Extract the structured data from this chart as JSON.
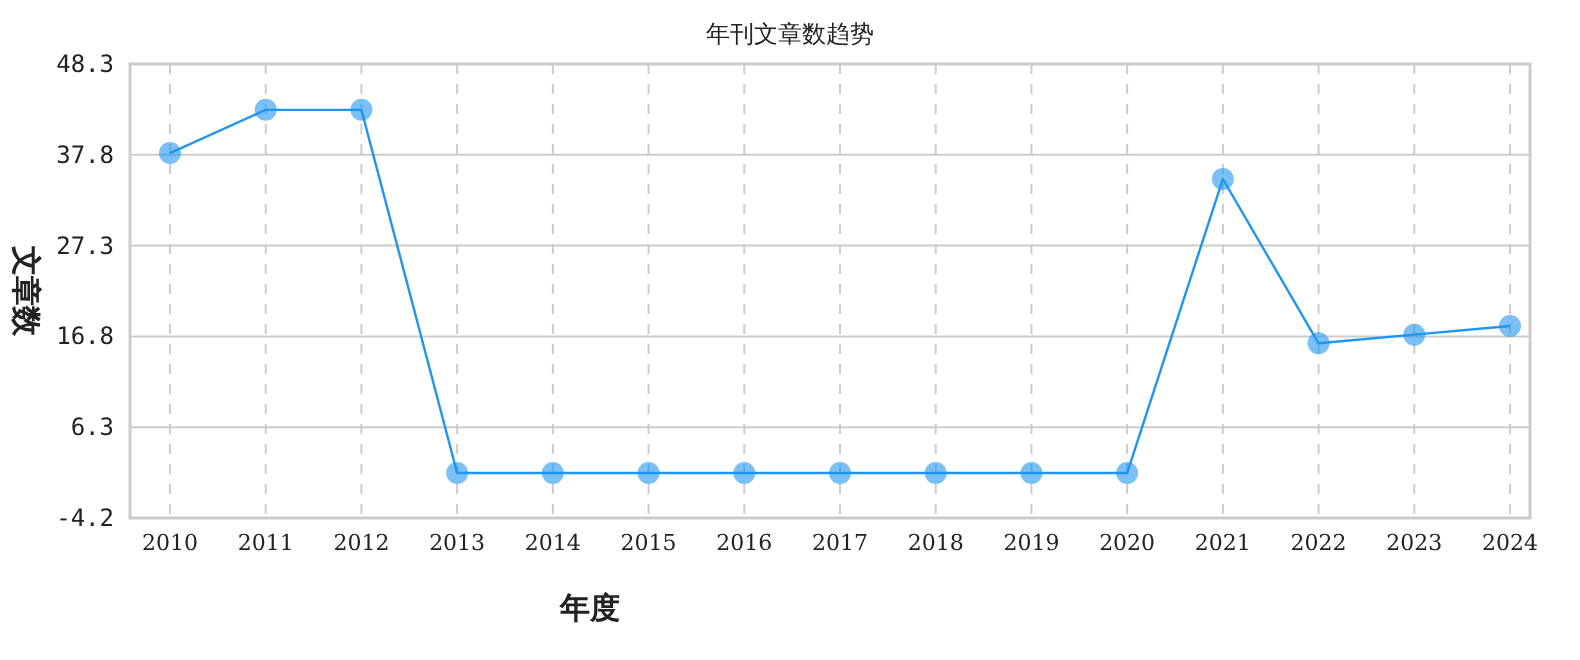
{
  "chart_data": {
    "type": "line",
    "title": "年刊文章数趋势",
    "xlabel": "年度",
    "ylabel": "文章数",
    "categories": [
      "2010",
      "2011",
      "2012",
      "2013",
      "2014",
      "2015",
      "2016",
      "2017",
      "2018",
      "2019",
      "2020",
      "2021",
      "2022",
      "2023",
      "2024"
    ],
    "series": [
      {
        "color": "#1e96f0",
        "values": [
          38,
          43,
          43,
          1,
          1,
          1,
          1,
          1,
          1,
          1,
          1,
          35,
          16,
          17,
          18
        ]
      }
    ],
    "ylim": [
      -4.2,
      48.3
    ],
    "yticks": [
      -4.2,
      6.3,
      16.8,
      27.3,
      37.8,
      48.3
    ],
    "grid": true,
    "marker": "circle",
    "line_style": "solid"
  }
}
